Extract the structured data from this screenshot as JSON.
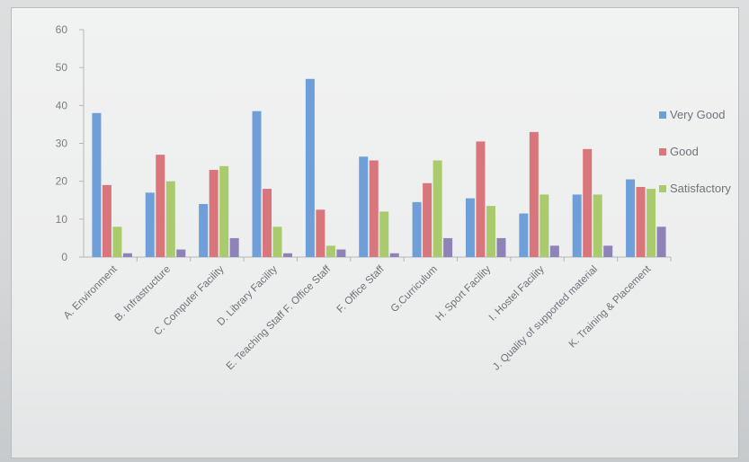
{
  "chart_data": {
    "type": "bar",
    "categories": [
      "A. Environment",
      "B. Infrastructure",
      "C. Computer Facility",
      "D. Library Facility",
      "E. Teaching Staff F. Office Staff",
      "F. Office Staff",
      "G.Curriculum",
      "H. Sport Facility",
      "I. Hostel Facility",
      "J. Quality of supported material",
      "K. Training & Placement"
    ],
    "series": [
      {
        "name": "Very Good",
        "color": "#6f9fd8",
        "values": [
          38,
          17,
          14,
          38.5,
          47,
          26.5,
          14.5,
          15.5,
          11.5,
          16.5,
          20.5
        ]
      },
      {
        "name": "Good",
        "color": "#d8767c",
        "values": [
          19,
          27,
          23,
          18,
          12.5,
          25.5,
          19.5,
          30.5,
          33,
          28.5,
          18.5
        ]
      },
      {
        "name": "Satisfactory",
        "color": "#a9cb6e",
        "values": [
          8,
          20,
          24,
          8,
          3,
          12,
          25.5,
          13.5,
          16.5,
          16.5,
          18
        ]
      },
      {
        "color": "#8f82b9",
        "values": [
          1,
          2,
          5,
          1,
          2,
          1,
          5,
          5,
          3,
          3,
          8
        ]
      }
    ],
    "yticks": [
      0,
      10,
      20,
      30,
      40,
      50,
      60
    ],
    "ylim": [
      0,
      60
    ],
    "legend_position": "right",
    "grid": false
  }
}
